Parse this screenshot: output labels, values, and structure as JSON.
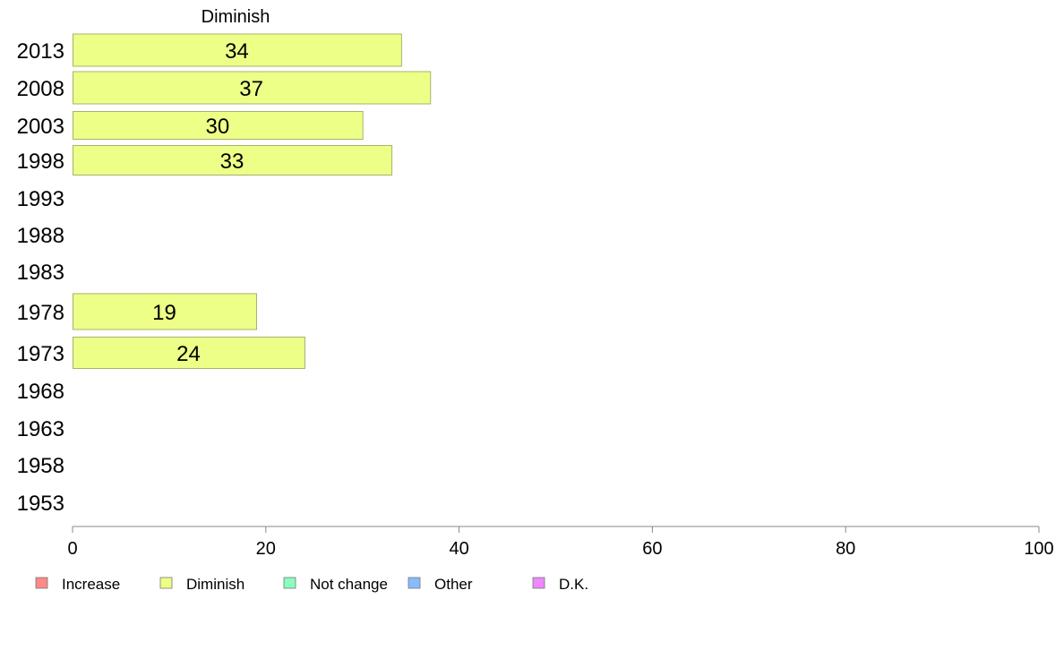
{
  "chart_data": {
    "type": "bar",
    "orientation": "horizontal",
    "title": "Diminish",
    "categories": [
      "2013",
      "2008",
      "2003",
      "1998",
      "1993",
      "1988",
      "1983",
      "1978",
      "1973",
      "1968",
      "1963",
      "1958",
      "1953"
    ],
    "series": [
      {
        "name": "Diminish",
        "color": "#eeff88",
        "values": [
          34,
          37,
          30,
          33,
          null,
          null,
          null,
          19,
          24,
          null,
          null,
          null,
          null
        ]
      }
    ],
    "xlim": [
      0,
      100
    ],
    "xticks": [
      0,
      20,
      40,
      60,
      80,
      100
    ],
    "grid": false,
    "legend": {
      "placement": "bottom",
      "items": [
        {
          "name": "Increase",
          "color": "#ff8888"
        },
        {
          "name": "Diminish",
          "color": "#eeff88"
        },
        {
          "name": "Not change",
          "color": "#88ffbb"
        },
        {
          "name": "Other",
          "color": "#88bbff"
        },
        {
          "name": "D.K.",
          "color": "#ee88ff"
        }
      ]
    }
  }
}
